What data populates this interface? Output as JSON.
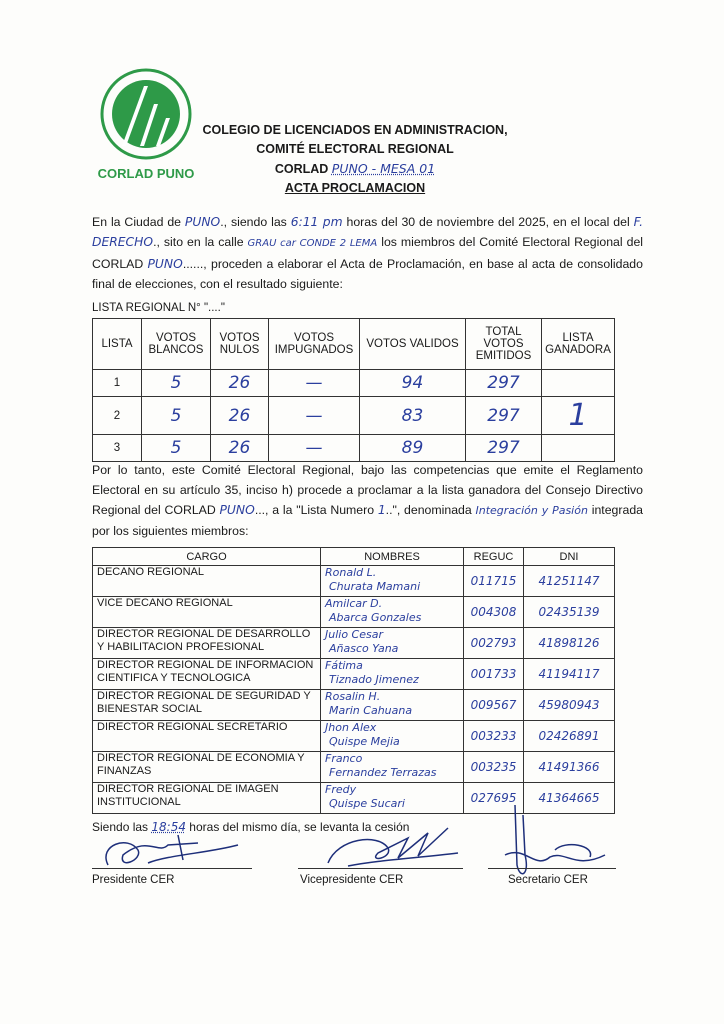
{
  "logo": {
    "arc_text": "COLEGIO DE LICENCIADOS EN ADMINISTRACION",
    "name": "CORLAD PUNO",
    "color": "#2e9a48"
  },
  "header": {
    "line1": "COLEGIO DE LICENCIADOS EN ADMINISTRACION,",
    "line2": "COMITÉ ELECTORAL REGIONAL",
    "corlad_label": "CORLAD",
    "corlad_value": "PUNO - MESA 01",
    "doc_title": "ACTA PROCLAMACION"
  },
  "intro": {
    "t1": "En la Ciudad de ",
    "city": "PUNO",
    "t2": "., siendo las ",
    "time": "6:11 pm",
    "t3": " horas del 30 de noviembre del 2025, en el local del ",
    "local": "F. DERECHO",
    "t4": "., sito en la calle ",
    "street": "GRAU car CONDE 2 LEMA",
    "t5": " los miembros del Comité Electoral Regional del CORLAD ",
    "corlad": "PUNO",
    "t6": "......, proceden a elaborar el Acta de Proclamación, en base al acta de consolidado final de elecciones, con el resultado siguiente:"
  },
  "lista_regional": "LISTA REGIONAL N° \"....\"",
  "results_table": {
    "headers": [
      "LISTA",
      "VOTOS BLANCOS",
      "VOTOS NULOS",
      "VOTOS IMPUGNADOS",
      "VOTOS VALIDOS",
      "TOTAL VOTOS EMITIDOS",
      "LISTA GANADORA"
    ],
    "rows": [
      [
        "1",
        "5",
        "26",
        "—",
        "94",
        "297",
        ""
      ],
      [
        "2",
        "5",
        "26",
        "—",
        "83",
        "297",
        "1"
      ],
      [
        "3",
        "5",
        "26",
        "—",
        "89",
        "297",
        ""
      ]
    ]
  },
  "proclamation": {
    "t1": "Por lo tanto, este Comité Electoral Regional, bajo las competencias que emite el Reglamento Electoral en su artículo 35, inciso h) procede a proclamar a la lista ganadora del Consejo Directivo Regional del CORLAD ",
    "corlad": "PUNO",
    "t2": "..., a la \"Lista Numero ",
    "numero": "1",
    "t3": "..\", denominada ",
    "denominada": "Integración y Pasión",
    "t4": " integrada por los siguientes miembros:"
  },
  "members_table": {
    "headers": [
      "CARGO",
      "NOMBRES",
      "REGUC",
      "DNI"
    ],
    "rows": [
      {
        "cargo": "DECANO REGIONAL",
        "nombre1": "Ronald L.",
        "nombre2": "Churata Mamani",
        "reguc": "011715",
        "dni": "41251147"
      },
      {
        "cargo": "VICE DECANO REGIONAL",
        "nombre1": "Amilcar D.",
        "nombre2": "Abarca Gonzales",
        "reguc": "004308",
        "dni": "02435139"
      },
      {
        "cargo": "DIRECTOR REGIONAL DE DESARROLLO Y HABILITACION PROFESIONAL",
        "nombre1": "Julio Cesar",
        "nombre2": "Añasco Yana",
        "reguc": "002793",
        "dni": "41898126"
      },
      {
        "cargo": "DIRECTOR REGIONAL DE INFORMACION CIENTIFICA Y TECNOLOGICA",
        "nombre1": "Fátima",
        "nombre2": "Tiznado Jimenez",
        "reguc": "001733",
        "dni": "41194117"
      },
      {
        "cargo": "DIRECTOR REGIONAL DE SEGURIDAD Y BIENESTAR SOCIAL",
        "nombre1": "Rosalin H.",
        "nombre2": "Marin Cahuana",
        "reguc": "009567",
        "dni": "45980943"
      },
      {
        "cargo": "DIRECTOR REGIONAL SECRETARIO",
        "nombre1": "Jhon Alex",
        "nombre2": "Quispe Mejia",
        "reguc": "003233",
        "dni": "02426891"
      },
      {
        "cargo": "DIRECTOR REGIONAL DE ECONOMIA Y FINANZAS",
        "nombre1": "Franco",
        "nombre2": "Fernandez Terrazas",
        "reguc": "003235",
        "dni": "41491366"
      },
      {
        "cargo": "DIRECTOR REGIONAL DE IMAGEN INSTITUCIONAL",
        "nombre1": "Fredy",
        "nombre2": "Quispe Sucari",
        "reguc": "027695",
        "dni": "41364665"
      }
    ]
  },
  "closing": {
    "t1": "Siendo las ",
    "time": "18:54",
    "t2": " horas del mismo día, se levanta la cesión"
  },
  "signatures": [
    "Presidente CER",
    "Vicepresidente CER",
    "Secretario CER"
  ],
  "ink_color": "#2b3f9e"
}
